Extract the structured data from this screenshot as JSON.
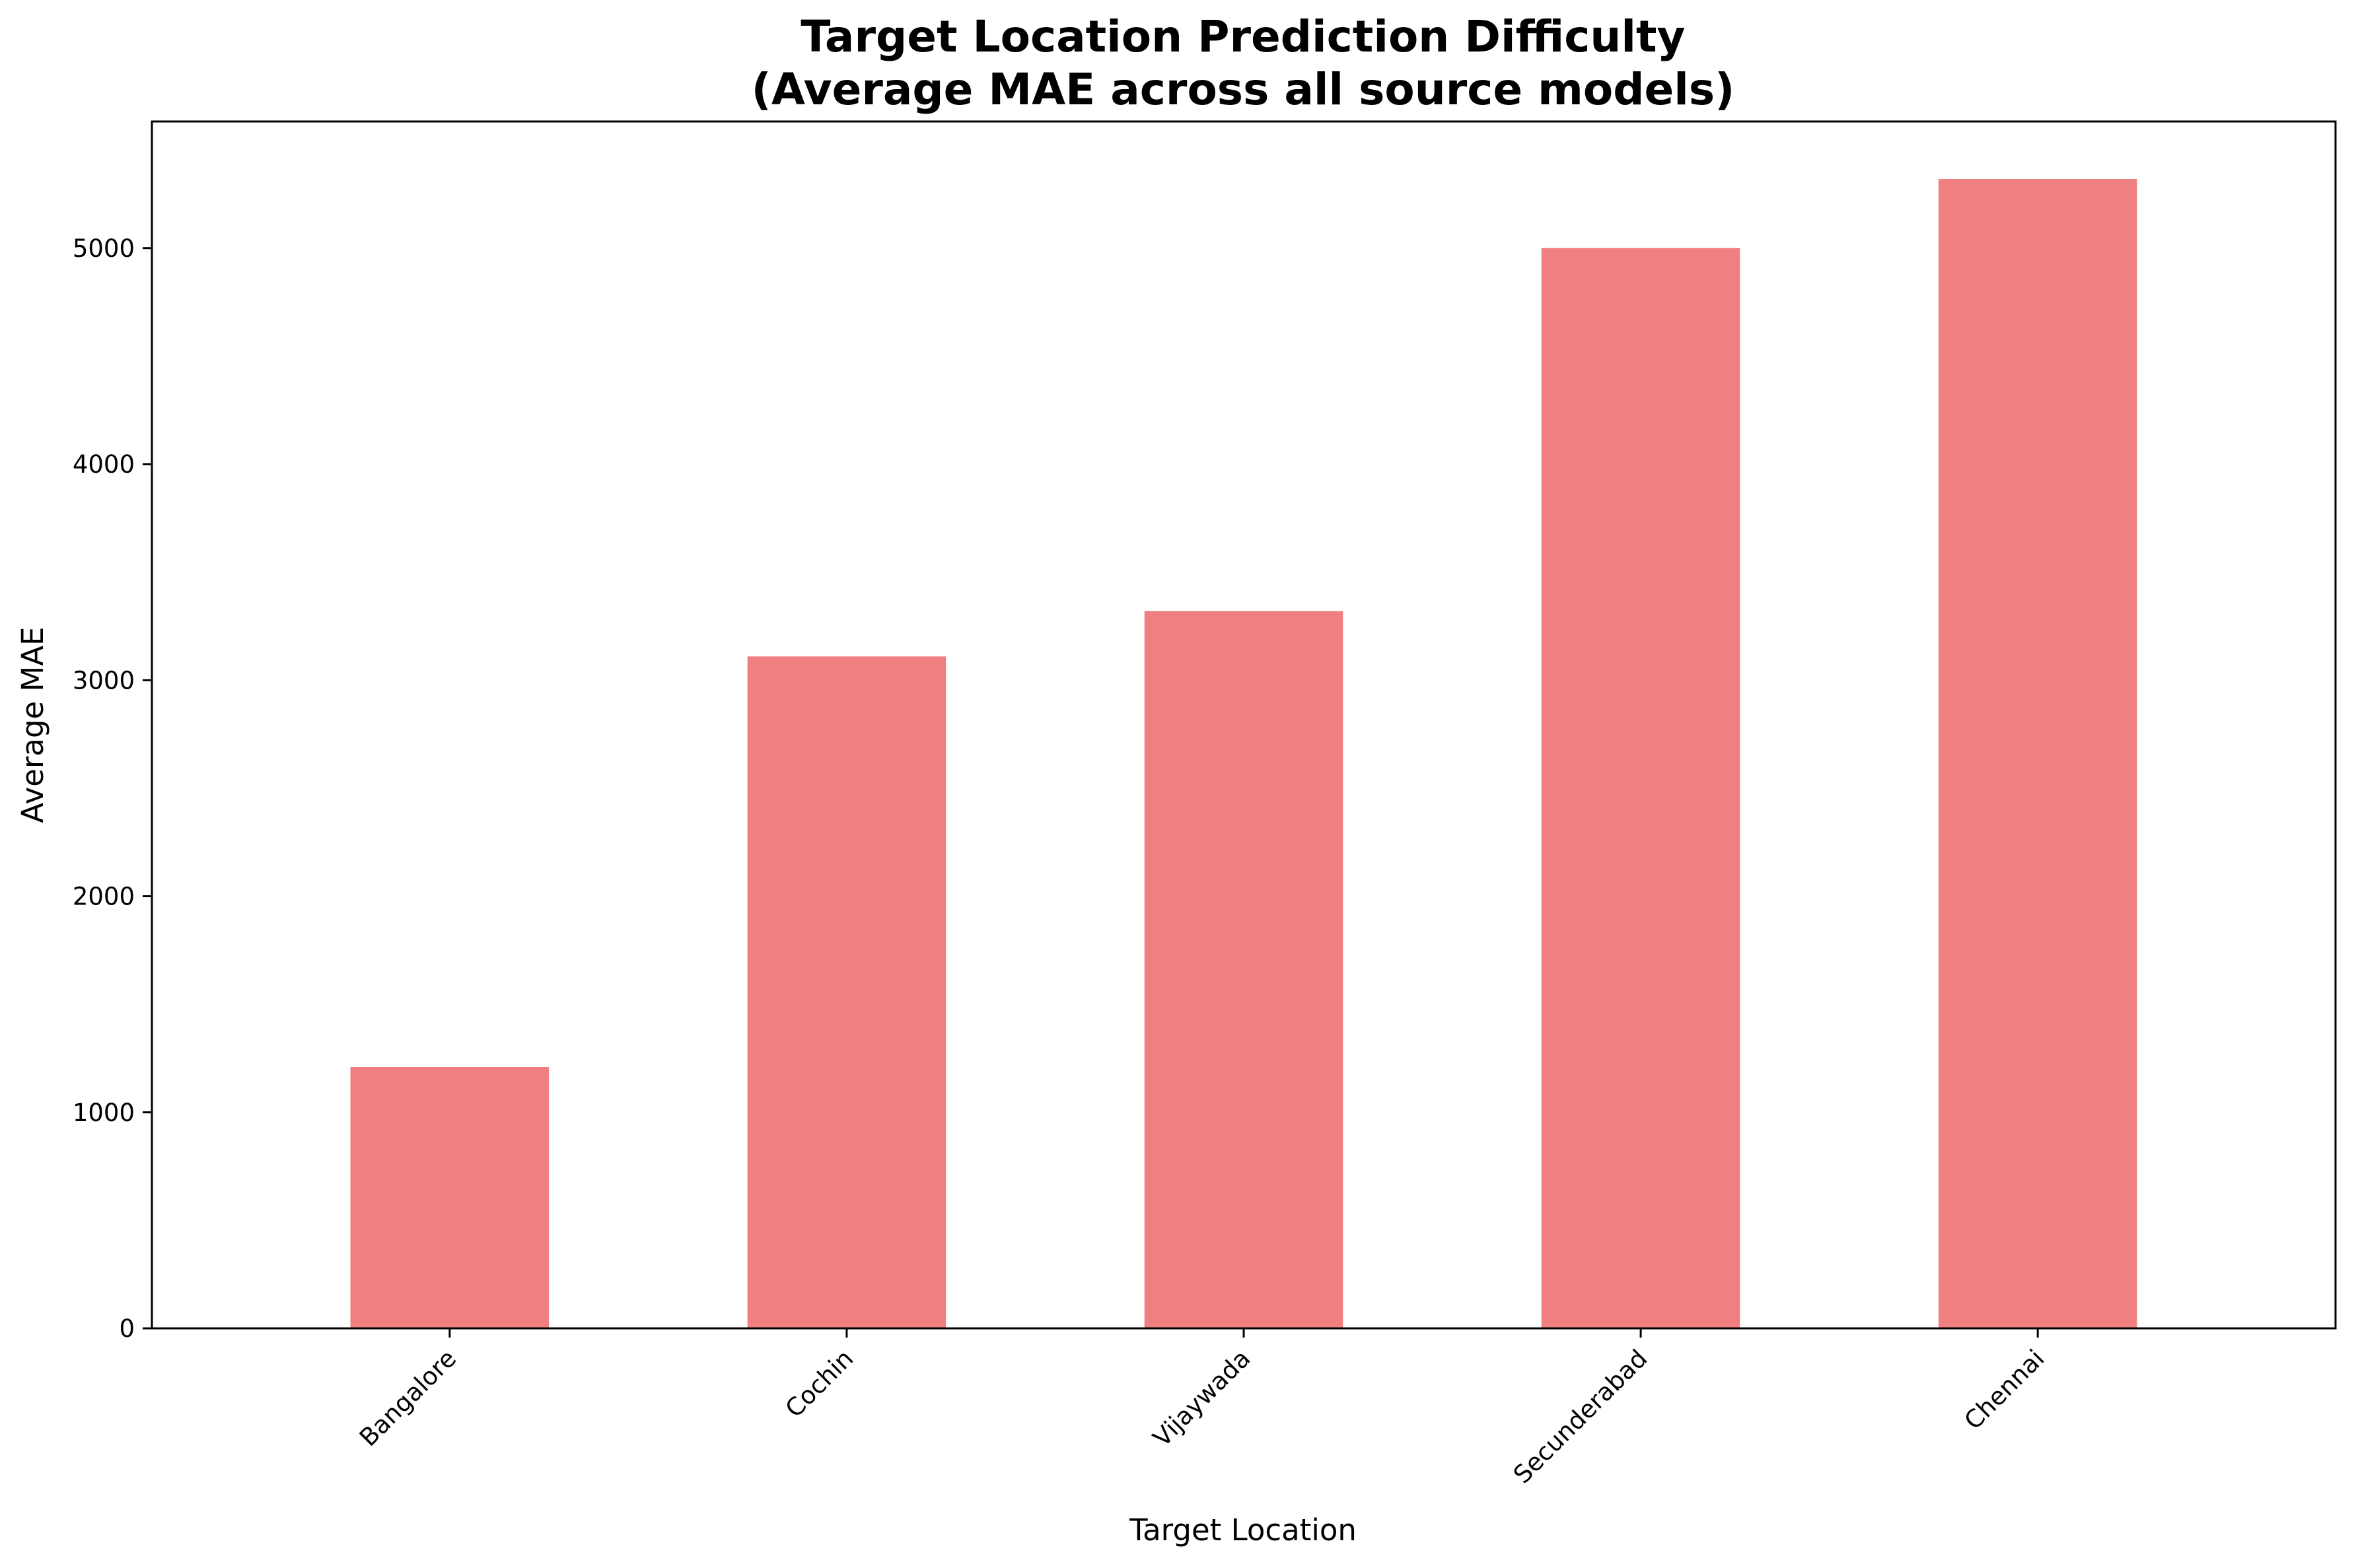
{
  "chart_data": {
    "type": "bar",
    "title_lines": [
      "Target Location Prediction Difficulty",
      "(Average MAE across all source models)"
    ],
    "xlabel": "Target Location",
    "ylabel": "Average MAE",
    "categories": [
      "Bangalore",
      "Cochin",
      "Vijaywada",
      "Secunderabad",
      "Chennai"
    ],
    "values": [
      1210,
      3110,
      3320,
      5000,
      5320
    ],
    "ylim": [
      0,
      5586
    ],
    "yticks": [
      0,
      1000,
      2000,
      3000,
      4000,
      5000
    ],
    "bar_color": "#f08080",
    "grid": false,
    "legend": false
  }
}
